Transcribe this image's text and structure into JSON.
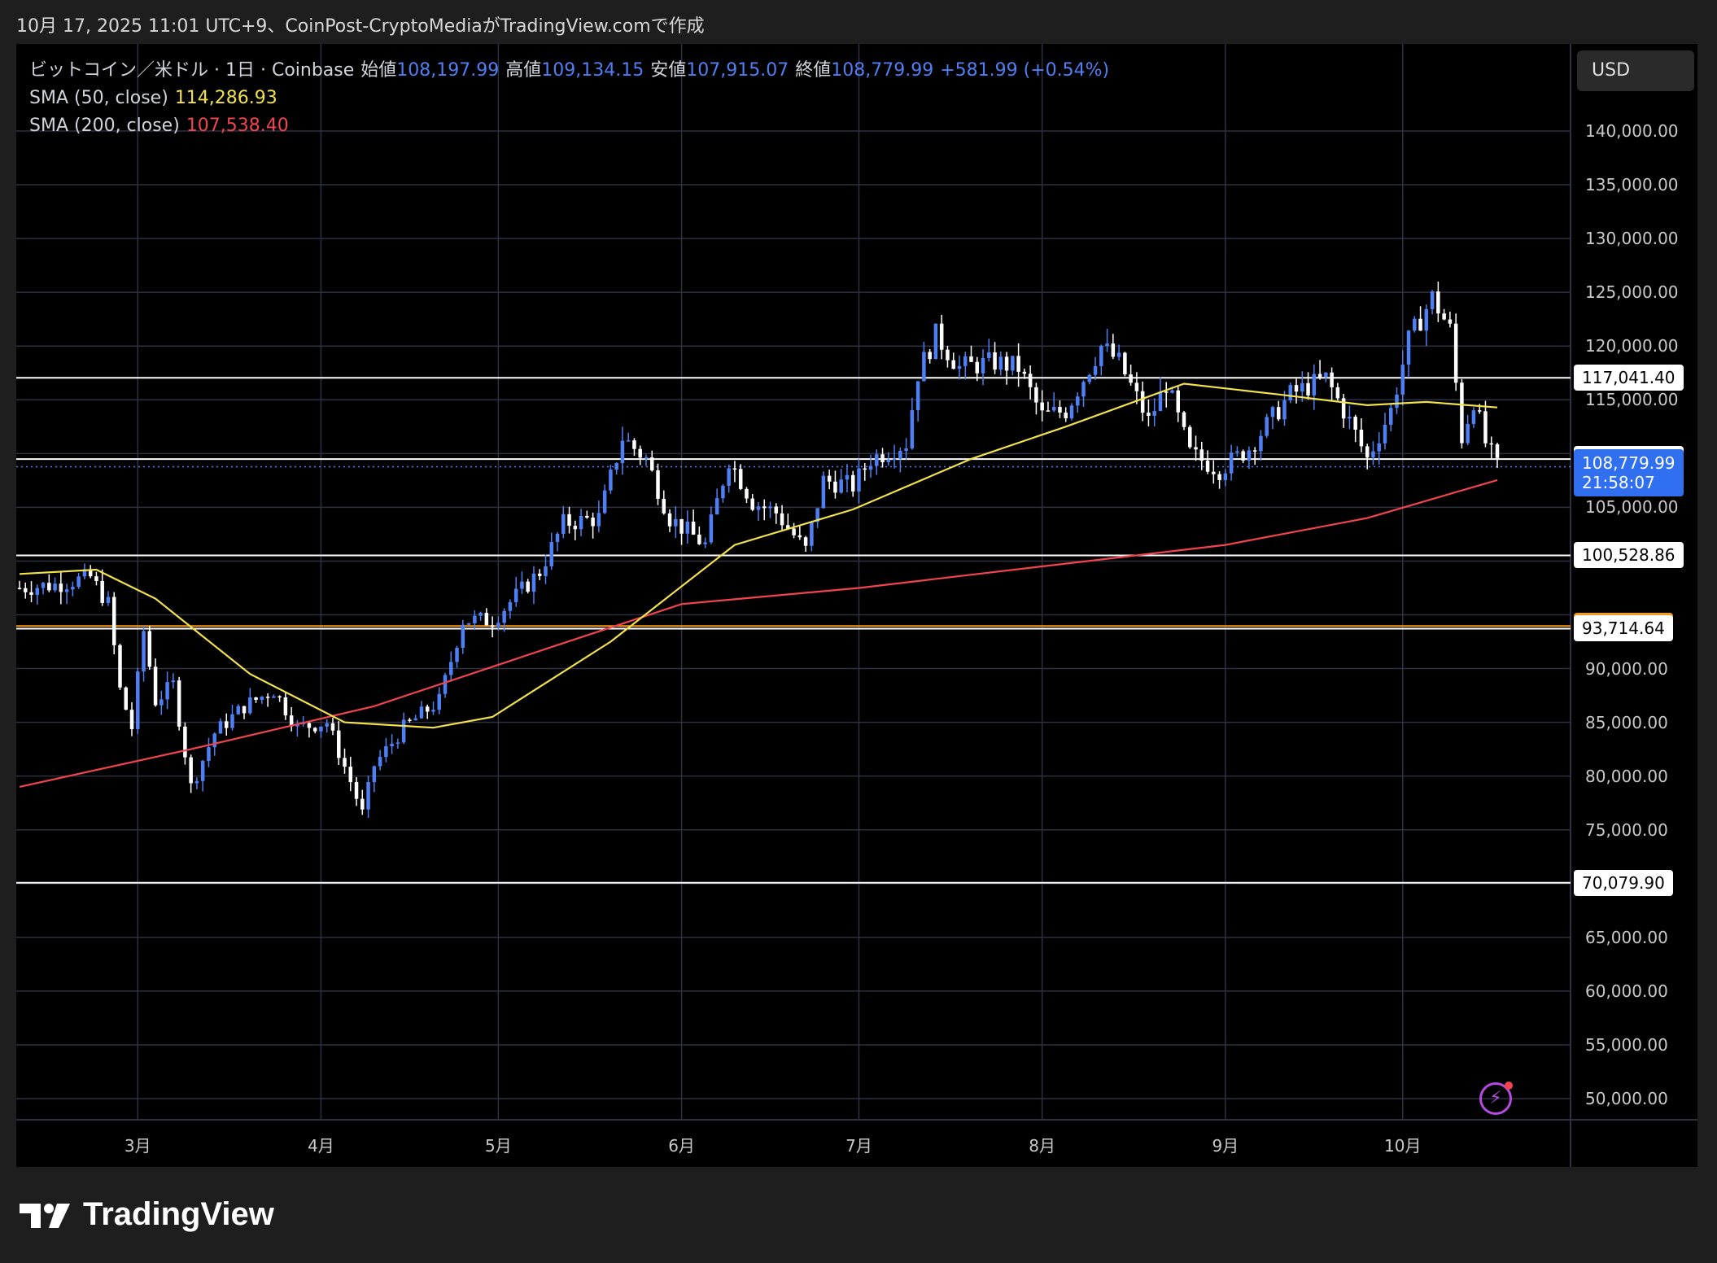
{
  "caption": "10月 17, 2025 11:01 UTC+9、CoinPost-CryptoMediaがTradingView.comで作成",
  "legend": {
    "symbol": "ビットコイン／米ドル · 1日 · Coinbase",
    "open_label": "始値",
    "open": "108,197.99",
    "high_label": "高値",
    "high": "109,134.15",
    "low_label": "安値",
    "low": "107,915.07",
    "close_label": "終値",
    "close": "108,779.99",
    "change": "+581.99 (+0.54%)",
    "sma50_label": "SMA (50, close)",
    "sma50_value": "114,286.93",
    "sma200_label": "SMA (200, close)",
    "sma200_value": "107,538.40"
  },
  "currency_button": "USD",
  "brand": "TradingView",
  "colors": {
    "up": "#4f7ff5",
    "down": "#ffffff",
    "sma50": "#f2e14b",
    "sma200": "#f2444f",
    "orange_level": "#f59a1b",
    "grid": "#2e3142"
  },
  "chart_data": {
    "type": "candlestick",
    "y_axis_labels": [
      "140,000.00",
      "135,000.00",
      "130,000.00",
      "125,000.00",
      "120,000.00",
      "115,000.00",
      "105,000.00",
      "90,000.00",
      "85,000.00",
      "80,000.00",
      "75,000.00",
      "65,000.00",
      "60,000.00",
      "55,000.00",
      "50,000.00"
    ],
    "y_axis_values": [
      140000,
      135000,
      130000,
      125000,
      120000,
      115000,
      105000,
      90000,
      85000,
      80000,
      75000,
      65000,
      60000,
      55000,
      50000
    ],
    "x_axis_labels": [
      "3月",
      "4月",
      "5月",
      "6月",
      "7月",
      "8月",
      "9月",
      "10月"
    ],
    "x_axis_dates": [
      "2025-03-01",
      "2025-04-01",
      "2025-05-01",
      "2025-06-01",
      "2025-07-01",
      "2025-08-01",
      "2025-09-01",
      "2025-10-01"
    ],
    "date_range": [
      "2025-02-09",
      "2025-10-17"
    ],
    "horizontal_levels": [
      {
        "value": 117041.4,
        "label": "117,041.40",
        "style": "white"
      },
      {
        "value": 109483.68,
        "label": "109,483.68",
        "style": "white"
      },
      {
        "value": 100528.86,
        "label": "100,528.86",
        "style": "white"
      },
      {
        "value": 93962.39,
        "label": "93,962.39",
        "style": "orange"
      },
      {
        "value": 93714.64,
        "label": "93,714.64",
        "style": "white"
      },
      {
        "value": 70079.9,
        "label": "70,079.90",
        "style": "white"
      }
    ],
    "last_price": {
      "value": 108779.99,
      "label": "108,779.99",
      "countdown": "21:58:07"
    },
    "closes_path": [
      [
        "2025-02-09",
        97500
      ],
      [
        "2025-02-15",
        97800
      ],
      [
        "2025-02-21",
        98500
      ],
      [
        "2025-02-24",
        96000
      ],
      [
        "2025-02-26",
        88000
      ],
      [
        "2025-02-28",
        84500
      ],
      [
        "2025-03-02",
        93500
      ],
      [
        "2025-03-04",
        87000
      ],
      [
        "2025-03-07",
        88500
      ],
      [
        "2025-03-10",
        79000
      ],
      [
        "2025-03-14",
        84000
      ],
      [
        "2025-03-19",
        86500
      ],
      [
        "2025-03-24",
        88000
      ],
      [
        "2025-03-28",
        84500
      ],
      [
        "2025-04-02",
        85000
      ],
      [
        "2025-04-06",
        79500
      ],
      [
        "2025-04-08",
        76500
      ],
      [
        "2025-04-10",
        81000
      ],
      [
        "2025-04-15",
        84500
      ],
      [
        "2025-04-21",
        87000
      ],
      [
        "2025-04-25",
        94500
      ],
      [
        "2025-04-30",
        94500
      ],
      [
        "2025-05-08",
        99000
      ],
      [
        "2025-05-12",
        103500
      ],
      [
        "2025-05-18",
        104000
      ],
      [
        "2025-05-22",
        111500
      ],
      [
        "2025-05-26",
        109500
      ],
      [
        "2025-05-30",
        104000
      ],
      [
        "2025-06-05",
        101500
      ],
      [
        "2025-06-09",
        109500
      ],
      [
        "2025-06-13",
        105500
      ],
      [
        "2025-06-17",
        104500
      ],
      [
        "2025-06-22",
        101000
      ],
      [
        "2025-06-25",
        107500
      ],
      [
        "2025-06-30",
        107000
      ],
      [
        "2025-07-03",
        109500
      ],
      [
        "2025-07-09",
        111000
      ],
      [
        "2025-07-11",
        117500
      ],
      [
        "2025-07-14",
        121000
      ],
      [
        "2025-07-18",
        118000
      ],
      [
        "2025-07-24",
        118500
      ],
      [
        "2025-07-28",
        118000
      ],
      [
        "2025-08-01",
        113500
      ],
      [
        "2025-08-05",
        114000
      ],
      [
        "2025-08-11",
        120000
      ],
      [
        "2025-08-14",
        118500
      ],
      [
        "2025-08-19",
        113000
      ],
      [
        "2025-08-22",
        116500
      ],
      [
        "2025-08-26",
        110000
      ],
      [
        "2025-08-31",
        108500
      ],
      [
        "2025-09-05",
        110500
      ],
      [
        "2025-09-12",
        115500
      ],
      [
        "2025-09-18",
        117000
      ],
      [
        "2025-09-22",
        113000
      ],
      [
        "2025-09-25",
        109500
      ],
      [
        "2025-09-29",
        114000
      ],
      [
        "2025-10-02",
        120500
      ],
      [
        "2025-10-06",
        124500
      ],
      [
        "2025-10-09",
        121500
      ],
      [
        "2025-10-11",
        111500
      ],
      [
        "2025-10-13",
        115000
      ],
      [
        "2025-10-15",
        111000
      ],
      [
        "2025-10-17",
        108780
      ]
    ],
    "sma50": [
      [
        "2025-02-09",
        98800
      ],
      [
        "2025-02-22",
        99200
      ],
      [
        "2025-03-04",
        96500
      ],
      [
        "2025-03-20",
        89500
      ],
      [
        "2025-04-05",
        85000
      ],
      [
        "2025-04-20",
        84500
      ],
      [
        "2025-04-30",
        85500
      ],
      [
        "2025-05-20",
        92500
      ],
      [
        "2025-06-10",
        101500
      ],
      [
        "2025-06-30",
        104800
      ],
      [
        "2025-07-20",
        109500
      ],
      [
        "2025-08-05",
        112500
      ],
      [
        "2025-08-25",
        116500
      ],
      [
        "2025-09-10",
        115500
      ],
      [
        "2025-09-25",
        114500
      ],
      [
        "2025-10-05",
        114800
      ],
      [
        "2025-10-17",
        114287
      ]
    ],
    "sma200": [
      [
        "2025-02-09",
        79000
      ],
      [
        "2025-03-10",
        82500
      ],
      [
        "2025-04-10",
        86500
      ],
      [
        "2025-05-10",
        92000
      ],
      [
        "2025-06-01",
        96000
      ],
      [
        "2025-07-01",
        97500
      ],
      [
        "2025-08-01",
        99500
      ],
      [
        "2025-09-01",
        101500
      ],
      [
        "2025-09-25",
        104000
      ],
      [
        "2025-10-17",
        107538
      ]
    ]
  }
}
